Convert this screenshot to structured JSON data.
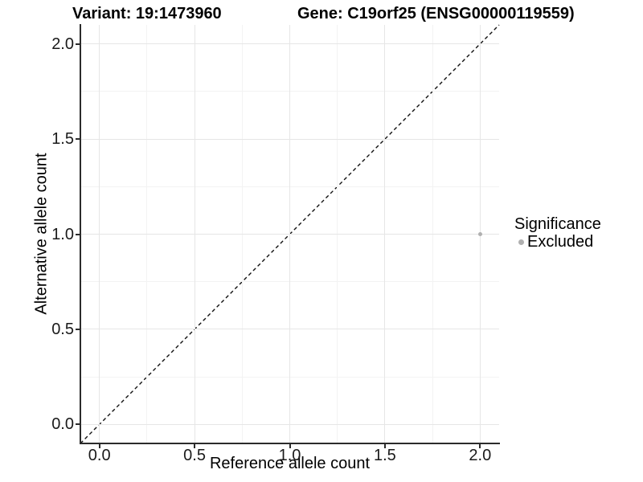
{
  "titles": {
    "variant": "Variant: 19:1473960",
    "gene": "Gene: C19orf25 (ENSG00000119559)"
  },
  "legend": {
    "title": "Significance",
    "items": [
      {
        "label": "Excluded",
        "color": "#b0b0b0"
      }
    ]
  },
  "chart_data": {
    "type": "scatter",
    "title_left": "Variant: 19:1473960",
    "title_right": "Gene: C19orf25 (ENSG00000119559)",
    "xlabel": "Reference allele count",
    "ylabel": "Alternative allele count",
    "xlim": [
      -0.1,
      2.1
    ],
    "ylim": [
      -0.1,
      2.1
    ],
    "x_ticks": [
      0.0,
      0.5,
      1.0,
      1.5,
      2.0
    ],
    "x_tick_labels": [
      "0.0",
      "0.5",
      "1.0",
      "1.5",
      "2.0"
    ],
    "y_ticks": [
      0.0,
      0.5,
      1.0,
      1.5,
      2.0
    ],
    "y_tick_labels": [
      "0.0",
      "0.5",
      "1.0",
      "1.5",
      "2.0"
    ],
    "minor_ticks": [
      0.25,
      0.75,
      1.25,
      1.75
    ],
    "grid": "on",
    "legend_position": "right",
    "series": [
      {
        "name": "Excluded",
        "color": "#b0b0b0",
        "points": [
          {
            "x": 2,
            "y": 1
          }
        ]
      }
    ],
    "reference_line": {
      "equation": "y = x",
      "style": "dashed",
      "color": "#000000"
    }
  },
  "colors": {
    "grid_major": "#e6e6e6",
    "grid_minor": "#f3f3f3",
    "axis_line": "#2b2b2b",
    "background": "#ffffff"
  }
}
